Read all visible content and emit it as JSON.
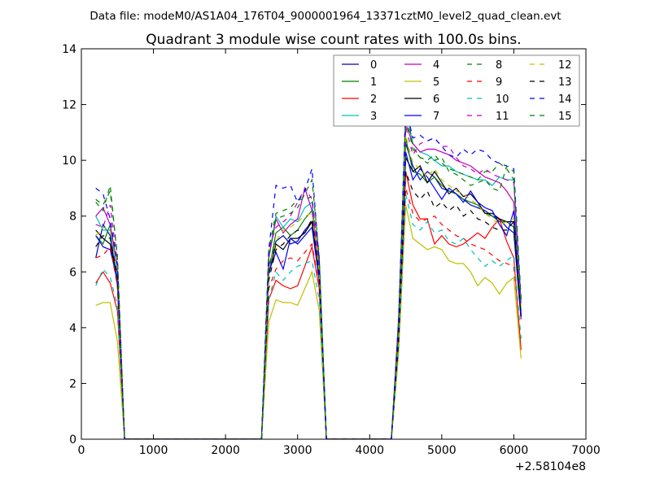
{
  "chart_data": {
    "type": "line",
    "suptitle": "Data file: modeM0/AS1A04_176T04_9000001964_13371cztM0_level2_quad_clean.evt",
    "title": "Quadrant 3 module wise count rates with 100.0s bins.",
    "xlabel": "",
    "ylabel": "",
    "x_offset_label": "+2.58104e8",
    "xlim": [
      0,
      7000
    ],
    "ylim": [
      0,
      14
    ],
    "x_ticks": [
      "0",
      "1000",
      "2000",
      "3000",
      "4000",
      "5000",
      "6000",
      "7000"
    ],
    "y_ticks": [
      "0",
      "2",
      "4",
      "6",
      "8",
      "10",
      "12",
      "14"
    ],
    "grid": false,
    "legend_position": "top-right",
    "x": [
      200,
      300,
      400,
      500,
      600,
      700,
      800,
      900,
      1000,
      1100,
      1200,
      1300,
      1400,
      1500,
      1600,
      1700,
      1800,
      1900,
      2000,
      2100,
      2200,
      2300,
      2400,
      2500,
      2600,
      2700,
      2800,
      2900,
      3000,
      3100,
      3200,
      3300,
      3400,
      3500,
      3600,
      3700,
      3800,
      3900,
      4000,
      4100,
      4200,
      4300,
      4400,
      4500,
      4600,
      4700,
      4800,
      4900,
      5000,
      5100,
      5200,
      5300,
      5400,
      5500,
      5600,
      5700,
      5800,
      5900,
      6000,
      6100
    ],
    "series": [
      {
        "name": "0",
        "color": "#0000bf",
        "dash": "solid",
        "values": [
          6.5,
          7.7,
          7.3,
          5.5,
          0,
          0,
          0,
          0,
          0,
          0,
          0,
          0,
          0,
          0,
          0,
          0,
          0,
          0,
          0,
          0,
          0,
          0,
          0,
          0,
          6.2,
          7.1,
          7.3,
          7.0,
          7.1,
          7.5,
          7.8,
          5.8,
          0,
          0,
          0,
          0,
          0,
          0,
          0,
          0,
          0,
          0,
          3.5,
          10.6,
          9.8,
          9.3,
          9.6,
          9.4,
          9.0,
          8.9,
          8.8,
          8.6,
          8.4,
          8.3,
          8.2,
          8.0,
          7.9,
          7.6,
          7.4,
          4.3
        ]
      },
      {
        "name": "1",
        "color": "#007f00",
        "dash": "solid",
        "values": [
          7.3,
          7.0,
          7.7,
          5.6,
          0,
          0,
          0,
          0,
          0,
          0,
          0,
          0,
          0,
          0,
          0,
          0,
          0,
          0,
          0,
          0,
          0,
          0,
          0,
          0,
          6.0,
          7.4,
          7.6,
          7.3,
          7.5,
          7.9,
          8.2,
          5.9,
          0,
          0,
          0,
          0,
          0,
          0,
          0,
          0,
          0,
          0,
          3.6,
          10.8,
          9.6,
          9.5,
          9.2,
          9.4,
          9.1,
          8.9,
          8.8,
          8.6,
          8.5,
          8.4,
          8.1,
          8.0,
          7.8,
          7.8,
          7.6,
          4.6
        ]
      },
      {
        "name": "2",
        "color": "#ff0000",
        "dash": "solid",
        "values": [
          5.6,
          6.0,
          5.6,
          4.6,
          0,
          0,
          0,
          0,
          0,
          0,
          0,
          0,
          0,
          0,
          0,
          0,
          0,
          0,
          0,
          0,
          0,
          0,
          0,
          0,
          5.0,
          5.7,
          5.5,
          5.4,
          5.5,
          6.2,
          6.9,
          5.4,
          0,
          0,
          0,
          0,
          0,
          0,
          0,
          0,
          0,
          0,
          3.2,
          9.6,
          8.4,
          7.9,
          7.9,
          7.0,
          7.3,
          7.0,
          6.9,
          7.0,
          7.2,
          7.4,
          7.2,
          7.6,
          7.9,
          7.1,
          6.5,
          3.2
        ]
      },
      {
        "name": "3",
        "color": "#00bfbf",
        "dash": "solid",
        "values": [
          8.0,
          7.5,
          7.5,
          5.8,
          0,
          0,
          0,
          0,
          0,
          0,
          0,
          0,
          0,
          0,
          0,
          0,
          0,
          0,
          0,
          0,
          0,
          0,
          0,
          0,
          6.5,
          8.0,
          7.6,
          7.9,
          7.8,
          8.3,
          8.5,
          6.0,
          0,
          0,
          0,
          0,
          0,
          0,
          0,
          0,
          0,
          0,
          3.9,
          11.8,
          10.6,
          10.3,
          10.2,
          10.0,
          9.8,
          9.8,
          9.6,
          9.5,
          9.4,
          9.3,
          9.3,
          9.1,
          9.4,
          9.3,
          9.3,
          5.0
        ]
      },
      {
        "name": "4",
        "color": "#bf00bf",
        "dash": "solid",
        "values": [
          8.0,
          8.3,
          7.7,
          6.2,
          0,
          0,
          0,
          0,
          0,
          0,
          0,
          0,
          0,
          0,
          0,
          0,
          0,
          0,
          0,
          0,
          0,
          0,
          0,
          0,
          6.5,
          7.9,
          7.4,
          7.7,
          7.9,
          9.0,
          8.2,
          6.3,
          0,
          0,
          0,
          0,
          0,
          0,
          0,
          0,
          0,
          0,
          4.3,
          11.3,
          10.6,
          10.3,
          10.4,
          10.4,
          10.3,
          10.2,
          10.0,
          9.9,
          9.8,
          9.6,
          9.4,
          9.3,
          9.2,
          8.9,
          8.5,
          4.3
        ]
      },
      {
        "name": "5",
        "color": "#bfbf00",
        "dash": "solid",
        "values": [
          4.8,
          4.9,
          4.9,
          3.5,
          0,
          0,
          0,
          0,
          0,
          0,
          0,
          0,
          0,
          0,
          0,
          0,
          0,
          0,
          0,
          0,
          0,
          0,
          0,
          0,
          4.2,
          5.0,
          4.9,
          4.9,
          4.8,
          5.4,
          6.0,
          4.6,
          0,
          0,
          0,
          0,
          0,
          0,
          0,
          0,
          0,
          0,
          3.0,
          8.4,
          7.2,
          7.0,
          6.8,
          6.9,
          6.8,
          6.4,
          6.3,
          6.3,
          6.0,
          5.5,
          5.8,
          5.6,
          5.2,
          5.6,
          5.8,
          2.9
        ]
      },
      {
        "name": "6",
        "color": "#000000",
        "dash": "solid",
        "values": [
          7.5,
          7.2,
          7.0,
          5.7,
          0,
          0,
          0,
          0,
          0,
          0,
          0,
          0,
          0,
          0,
          0,
          0,
          0,
          0,
          0,
          0,
          0,
          0,
          0,
          0,
          5.9,
          7.0,
          6.8,
          7.2,
          7.2,
          7.4,
          7.8,
          5.9,
          0,
          0,
          0,
          0,
          0,
          0,
          0,
          0,
          0,
          0,
          3.6,
          10.1,
          9.6,
          9.8,
          9.2,
          9.6,
          9.2,
          8.8,
          9.0,
          8.7,
          8.8,
          8.5,
          8.1,
          8.1,
          7.9,
          7.8,
          7.8,
          4.4
        ]
      },
      {
        "name": "7",
        "color": "#0000ff",
        "dash": "solid",
        "values": [
          7.3,
          6.9,
          6.8,
          5.7,
          0,
          0,
          0,
          0,
          0,
          0,
          0,
          0,
          0,
          0,
          0,
          0,
          0,
          0,
          0,
          0,
          0,
          0,
          0,
          0,
          6.0,
          6.7,
          6.1,
          7.2,
          7.0,
          7.3,
          7.6,
          5.7,
          0,
          0,
          0,
          0,
          0,
          0,
          0,
          0,
          0,
          0,
          3.6,
          10.3,
          9.3,
          9.7,
          9.4,
          9.0,
          8.6,
          9.0,
          8.8,
          8.5,
          8.9,
          8.5,
          8.3,
          8.2,
          7.7,
          7.3,
          8.2,
          4.5
        ]
      },
      {
        "name": "8",
        "color": "#007f00",
        "dash": "dashed",
        "values": [
          8.6,
          8.4,
          8.9,
          6.6,
          0,
          0,
          0,
          0,
          0,
          0,
          0,
          0,
          0,
          0,
          0,
          0,
          0,
          0,
          0,
          0,
          0,
          0,
          0,
          0,
          6.8,
          8.1,
          8.2,
          8.3,
          8.6,
          8.6,
          8.7,
          6.5,
          0,
          0,
          0,
          0,
          0,
          0,
          0,
          0,
          0,
          0,
          4.0,
          12.0,
          10.5,
          10.1,
          10.0,
          10.2,
          9.9,
          9.7,
          9.6,
          9.5,
          9.4,
          9.3,
          9.6,
          9.6,
          9.9,
          9.7,
          9.3,
          5.0
        ]
      },
      {
        "name": "9",
        "color": "#ff0000",
        "dash": "dashed",
        "values": [
          6.5,
          6.6,
          6.9,
          5.5,
          0,
          0,
          0,
          0,
          0,
          0,
          0,
          0,
          0,
          0,
          0,
          0,
          0,
          0,
          0,
          0,
          0,
          0,
          0,
          0,
          5.4,
          6.1,
          6.4,
          6.5,
          6.4,
          6.7,
          7.0,
          5.5,
          0,
          0,
          0,
          0,
          0,
          0,
          0,
          0,
          0,
          0,
          3.4,
          9.0,
          8.1,
          7.8,
          7.9,
          8.0,
          7.7,
          7.5,
          7.3,
          7.2,
          7.0,
          6.9,
          6.8,
          6.6,
          6.4,
          6.3,
          6.2,
          3.6
        ]
      },
      {
        "name": "10",
        "color": "#00bfbf",
        "dash": "dashed",
        "values": [
          5.5,
          6.1,
          5.8,
          4.8,
          0,
          0,
          0,
          0,
          0,
          0,
          0,
          0,
          0,
          0,
          0,
          0,
          0,
          0,
          0,
          0,
          0,
          0,
          0,
          0,
          5.0,
          6.0,
          5.7,
          6.0,
          6.2,
          6.3,
          6.4,
          5.0,
          0,
          0,
          0,
          0,
          0,
          0,
          0,
          0,
          0,
          0,
          3.2,
          8.8,
          7.7,
          7.5,
          7.8,
          7.4,
          7.5,
          7.1,
          7.0,
          7.2,
          6.8,
          6.5,
          6.2,
          6.4,
          6.2,
          6.4,
          6.6,
          3.6
        ]
      },
      {
        "name": "11",
        "color": "#bf00bf",
        "dash": "dashed",
        "values": [
          7.7,
          7.6,
          8.4,
          6.3,
          0,
          0,
          0,
          0,
          0,
          0,
          0,
          0,
          0,
          0,
          0,
          0,
          0,
          0,
          0,
          0,
          0,
          0,
          0,
          0,
          6.8,
          7.6,
          7.8,
          8.0,
          8.5,
          9.0,
          8.6,
          6.3,
          0,
          0,
          0,
          0,
          0,
          0,
          0,
          0,
          0,
          0,
          4.1,
          11.2,
          10.2,
          10.6,
          10.7,
          10.8,
          10.5,
          10.5,
          10.1,
          9.8,
          9.7,
          9.5,
          9.7,
          9.5,
          9.4,
          9.3,
          9.2,
          4.8
        ]
      },
      {
        "name": "12",
        "color": "#bfbf00",
        "dash": "dashed",
        "values": [
          7.3,
          7.6,
          7.5,
          6.0,
          0,
          0,
          0,
          0,
          0,
          0,
          0,
          0,
          0,
          0,
          0,
          0,
          0,
          0,
          0,
          0,
          0,
          0,
          0,
          0,
          6.1,
          7.1,
          7.5,
          7.6,
          7.8,
          8.0,
          8.1,
          6.0,
          0,
          0,
          0,
          0,
          0,
          0,
          0,
          0,
          0,
          0,
          3.7,
          10.9,
          9.9,
          9.7,
          9.4,
          9.7,
          9.3,
          9.1,
          8.9,
          8.8,
          8.6,
          8.4,
          8.1,
          7.9,
          7.7,
          7.8,
          7.9,
          4.7
        ]
      },
      {
        "name": "13",
        "color": "#000000",
        "dash": "dashed",
        "values": [
          6.9,
          7.3,
          7.2,
          5.9,
          0,
          0,
          0,
          0,
          0,
          0,
          0,
          0,
          0,
          0,
          0,
          0,
          0,
          0,
          0,
          0,
          0,
          0,
          0,
          0,
          5.7,
          6.8,
          7.0,
          7.3,
          7.5,
          7.4,
          7.9,
          5.9,
          0,
          0,
          0,
          0,
          0,
          0,
          0,
          0,
          0,
          0,
          3.5,
          9.6,
          8.9,
          8.6,
          8.9,
          8.3,
          8.5,
          8.2,
          8.4,
          8.0,
          8.2,
          7.9,
          7.8,
          7.6,
          7.5,
          7.5,
          7.8,
          4.4
        ]
      },
      {
        "name": "14",
        "color": "#0000ff",
        "dash": "dashed",
        "values": [
          9.0,
          8.8,
          7.9,
          6.2,
          0,
          0,
          0,
          0,
          0,
          0,
          0,
          0,
          0,
          0,
          0,
          0,
          0,
          0,
          0,
          0,
          0,
          0,
          0,
          0,
          6.8,
          9.1,
          9.0,
          9.1,
          8.5,
          8.9,
          9.7,
          6.4,
          0,
          0,
          0,
          0,
          0,
          0,
          0,
          0,
          0,
          0,
          4.1,
          11.9,
          10.8,
          10.9,
          10.7,
          10.8,
          10.5,
          10.2,
          10.1,
          10.4,
          10.2,
          10.4,
          10.3,
          10.0,
          9.9,
          9.8,
          9.7,
          5.0
        ]
      },
      {
        "name": "15",
        "color": "#007f00",
        "dash": "dashed",
        "values": [
          8.5,
          8.2,
          9.1,
          6.5,
          0,
          0,
          0,
          0,
          0,
          0,
          0,
          0,
          0,
          0,
          0,
          0,
          0,
          0,
          0,
          0,
          0,
          0,
          0,
          0,
          6.5,
          7.9,
          8.0,
          8.1,
          8.3,
          8.8,
          9.3,
          6.6,
          0,
          0,
          0,
          0,
          0,
          0,
          0,
          0,
          0,
          0,
          4.0,
          11.6,
          10.4,
          10.1,
          9.9,
          10.0,
          10.1,
          9.6,
          9.5,
          9.3,
          9.1,
          9.2,
          9.3,
          9.0,
          8.9,
          9.8,
          9.6,
          4.8
        ]
      }
    ]
  }
}
